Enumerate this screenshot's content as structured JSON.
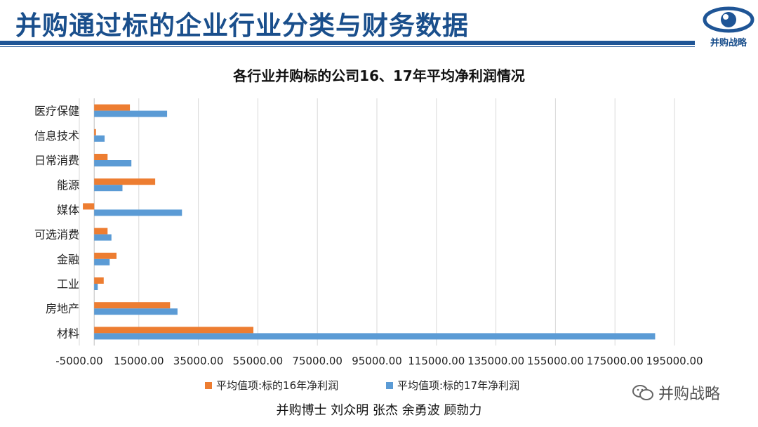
{
  "header": {
    "title": "并购通过标的企业行业分类与财务数据",
    "logo_text": "并购战略"
  },
  "chart_data": {
    "type": "bar",
    "orientation": "horizontal",
    "title": "各行业并购标的公司16、17年平均净利润情况",
    "categories": [
      "医疗保健",
      "信息技术",
      "日常消费",
      "能源",
      "媒体",
      "可选消费",
      "金融",
      "工业",
      "房地产",
      "材料"
    ],
    "series": [
      {
        "name": "平均值项:标的16年净利润",
        "color": "#ed7d31",
        "values": [
          12000,
          600,
          4500,
          20500,
          -3800,
          4500,
          7500,
          3200,
          25500,
          53500
        ]
      },
      {
        "name": "平均值项:标的17年净利润",
        "color": "#5b9bd5",
        "values": [
          24500,
          3500,
          12500,
          9500,
          29500,
          5800,
          5200,
          1200,
          28000,
          188500
        ]
      }
    ],
    "xlim": [
      -5000,
      195000
    ],
    "x_ticks": [
      "-5000.00",
      "15000.00",
      "35000.00",
      "55000.00",
      "75000.00",
      "95000.00",
      "115000.00",
      "135000.00",
      "155000.00",
      "175000.00",
      "195000.00"
    ],
    "grid": true,
    "legend": "bottom"
  },
  "footer": {
    "authors": "并购博士 刘众明 张杰 余勇波 顾勍力",
    "watermark": "并购战略"
  }
}
